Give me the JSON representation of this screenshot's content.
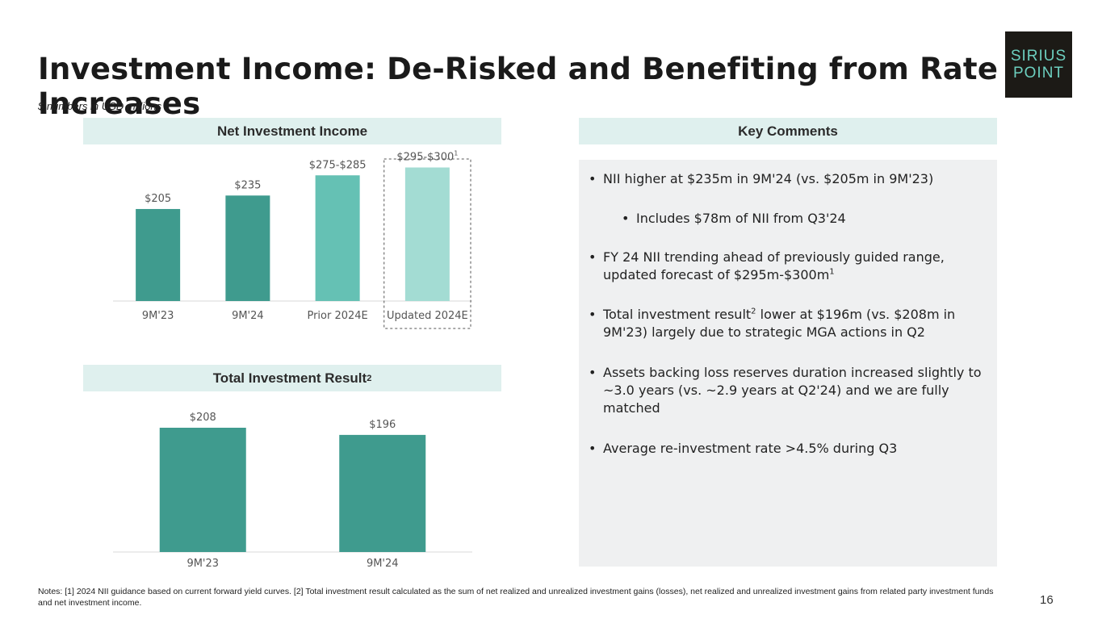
{
  "slide": {
    "title": "Investment Income: De-Risked and Benefiting from Rate Increases",
    "subtitle": "$ numbers in USD millions",
    "logo_lines": [
      "SIRIUS",
      "POINT"
    ],
    "page_number": "16",
    "notes": "Notes: [1] 2024 NII guidance based on current forward yield curves. [2] Total investment result calculated as the sum of net realized and unrealized investment gains (losses), net realized and unrealized investment gains from related party investment funds and net investment income."
  },
  "headers": {
    "nii": "Net Investment Income",
    "tir": "Total Investment Result",
    "tir_sup": "2",
    "comments": "Key Comments"
  },
  "comments": [
    {
      "text": "NII higher at $235m in 9M'24 (vs. $205m in 9M'23)",
      "sup": "",
      "rest": ""
    },
    {
      "text": "Includes $78m of NII from Q3'24",
      "sup": "",
      "rest": ""
    },
    {
      "text": "FY 24 NII trending ahead of previously guided range, updated forecast of $295m-$300m",
      "sup": "1",
      "rest": ""
    },
    {
      "text": "Total investment result",
      "sup": "2",
      "rest": " lower at $196m (vs. $208m in 9M'23) largely due to strategic MGA actions in Q2"
    },
    {
      "text": "Assets backing loss reserves duration increased slightly to ~3.0 years (vs. ~2.9 years at Q2'24) and we are fully matched",
      "sup": "",
      "rest": ""
    },
    {
      "text": "Average re-investment rate >4.5% during Q3",
      "sup": "",
      "rest": ""
    }
  ],
  "colors": {
    "bar_dark": "#3f9b8e",
    "bar_mid": "#65c1b4",
    "bar_light": "#a3dcd3",
    "header_bg": "#dff0ee",
    "logo_teal": "#6ccfbf"
  },
  "chart_data": [
    {
      "type": "bar",
      "title": "Net Investment Income",
      "categories": [
        "9M'23",
        "9M'24",
        "Prior 2024E",
        "Updated 2024E"
      ],
      "values": [
        205,
        235,
        280,
        297.5
      ],
      "labels": [
        "$205",
        "$235",
        "$275-$285",
        "$295-$300"
      ],
      "label_sups": [
        "",
        "",
        "",
        "1"
      ],
      "colors": [
        "#3f9b8e",
        "#3f9b8e",
        "#65c1b4",
        "#a3dcd3"
      ],
      "highlight_category": "Updated 2024E",
      "ylim": [
        0,
        320
      ]
    },
    {
      "type": "bar",
      "title": "Total Investment Result",
      "categories": [
        "9M'23",
        "9M'24"
      ],
      "values": [
        208,
        196
      ],
      "labels": [
        "$208",
        "$196"
      ],
      "colors": [
        "#3f9b8e",
        "#3f9b8e"
      ],
      "ylim": [
        0,
        208
      ]
    }
  ]
}
